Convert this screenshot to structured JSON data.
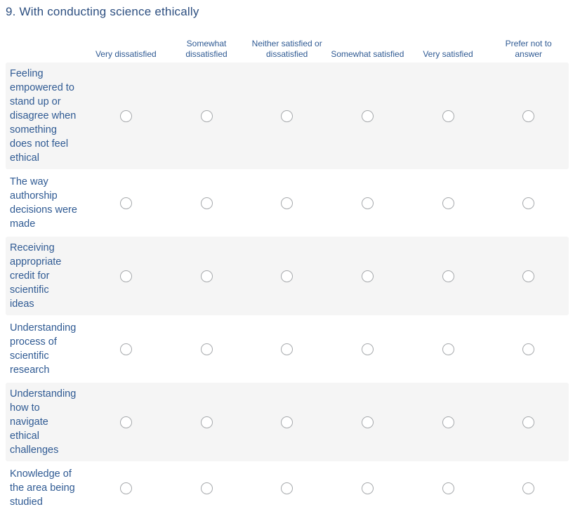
{
  "question": {
    "title": "9. With conducting science ethically"
  },
  "matrix": {
    "columns": [
      "Very dissatisfied",
      "Somewhat\ndissatisfied",
      "Neither satisfied or\ndissatisfied",
      "Somewhat satisfied",
      "Very satisfied",
      "Prefer not to\nanswer"
    ],
    "rows": [
      {
        "label": "Feeling\nempowered to\nstand up or\ndisagree when\nsomething\ndoes not feel\nethical",
        "selected": null
      },
      {
        "label": "The way\nauthorship\ndecisions were\nmade",
        "selected": null
      },
      {
        "label": "Receiving\nappropriate\ncredit for\nscientific\nideas",
        "selected": null
      },
      {
        "label": "Understanding\nprocess of\nscientific\nresearch",
        "selected": null
      },
      {
        "label": "Understanding\nhow to\nnavigate\nethical\nchallenges",
        "selected": null
      },
      {
        "label": "Knowledge of\nthe area being\nstudied",
        "selected": null
      }
    ]
  },
  "radio_state": "all-unselected",
  "colors": {
    "title_text": "#2d4f80",
    "label_text": "#2f5a93",
    "row_shade": "#f5f5f5",
    "radio_border": "#a6a9ac",
    "background": "#ffffff"
  }
}
